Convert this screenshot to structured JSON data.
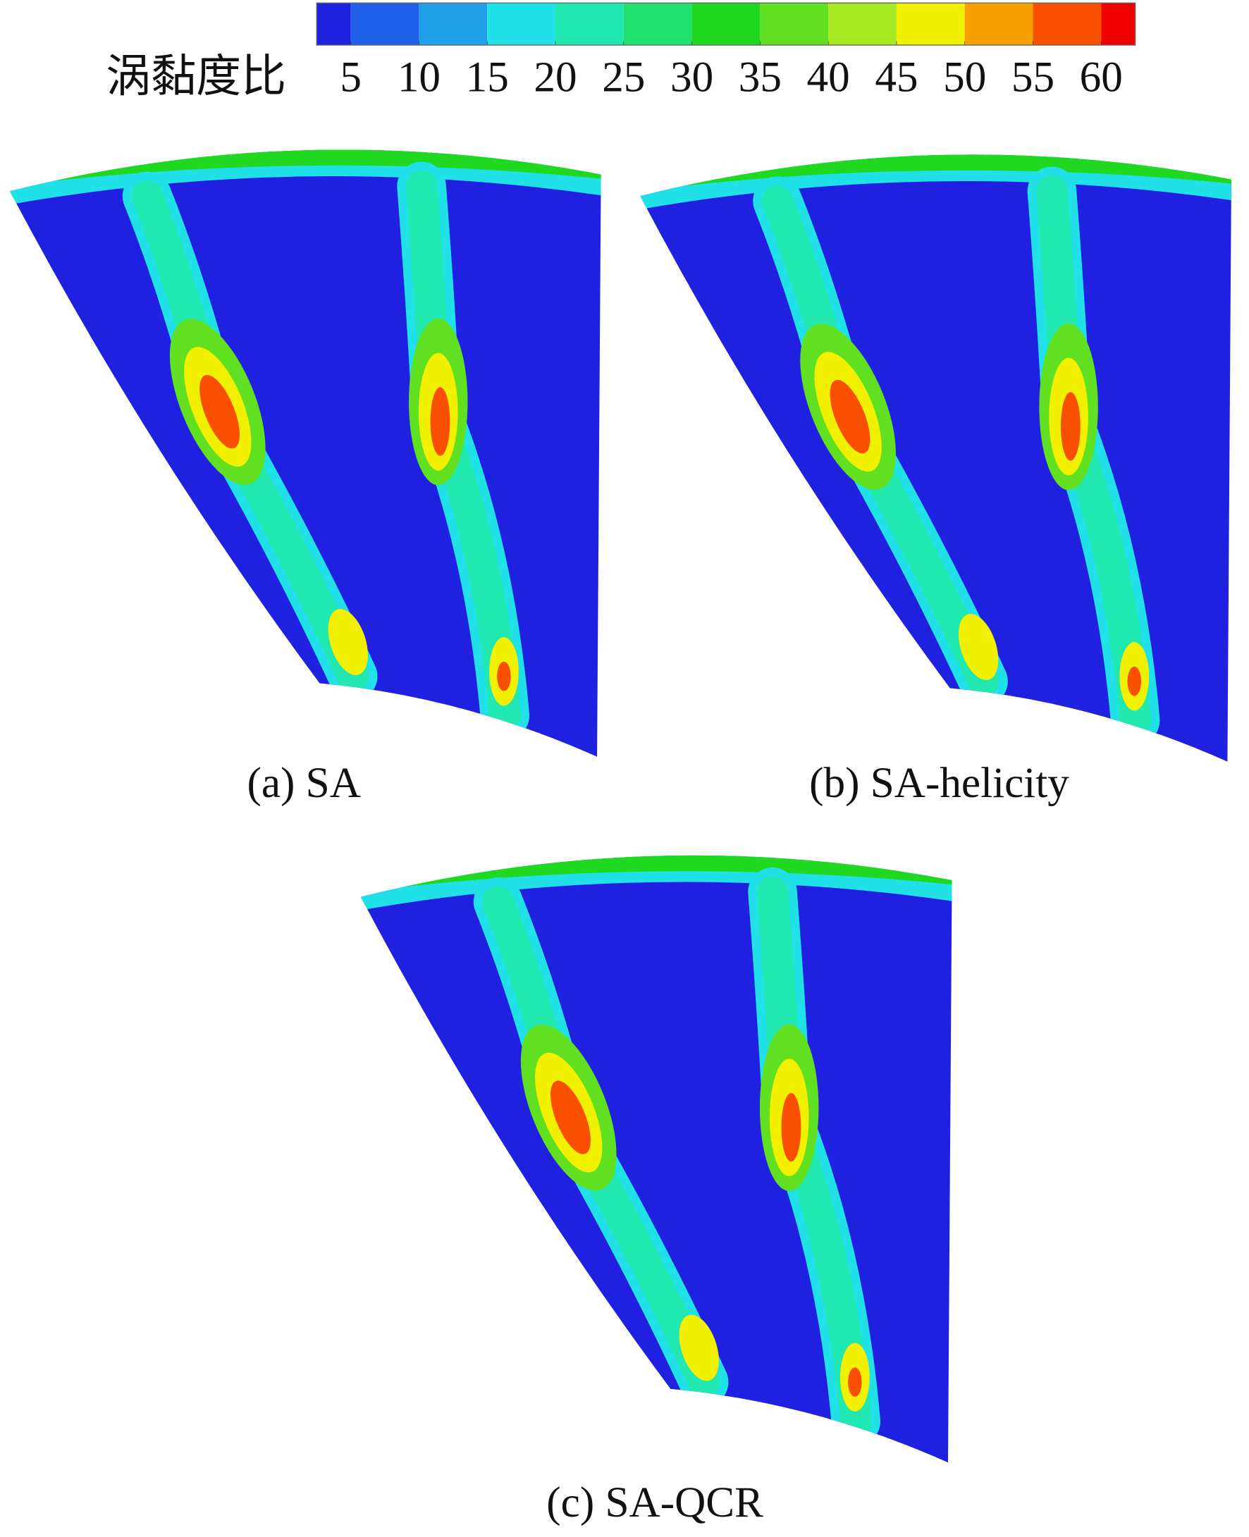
{
  "colorbar": {
    "label": "涡黏度比",
    "ticks": [
      5,
      10,
      15,
      20,
      25,
      30,
      35,
      40,
      45,
      50,
      55,
      60
    ],
    "lim": [
      2.5,
      62.5
    ],
    "colors": [
      "#2020e0",
      "#2060e8",
      "#20a0e8",
      "#20e0e8",
      "#20e8b0",
      "#20e070",
      "#20d820",
      "#60e020",
      "#a8e820",
      "#f0f000",
      "#f8a000",
      "#f85000",
      "#f00000"
    ]
  },
  "captions": [
    "(a) SA",
    "(b) SA-helicity",
    "(c) SA-QCR"
  ]
}
